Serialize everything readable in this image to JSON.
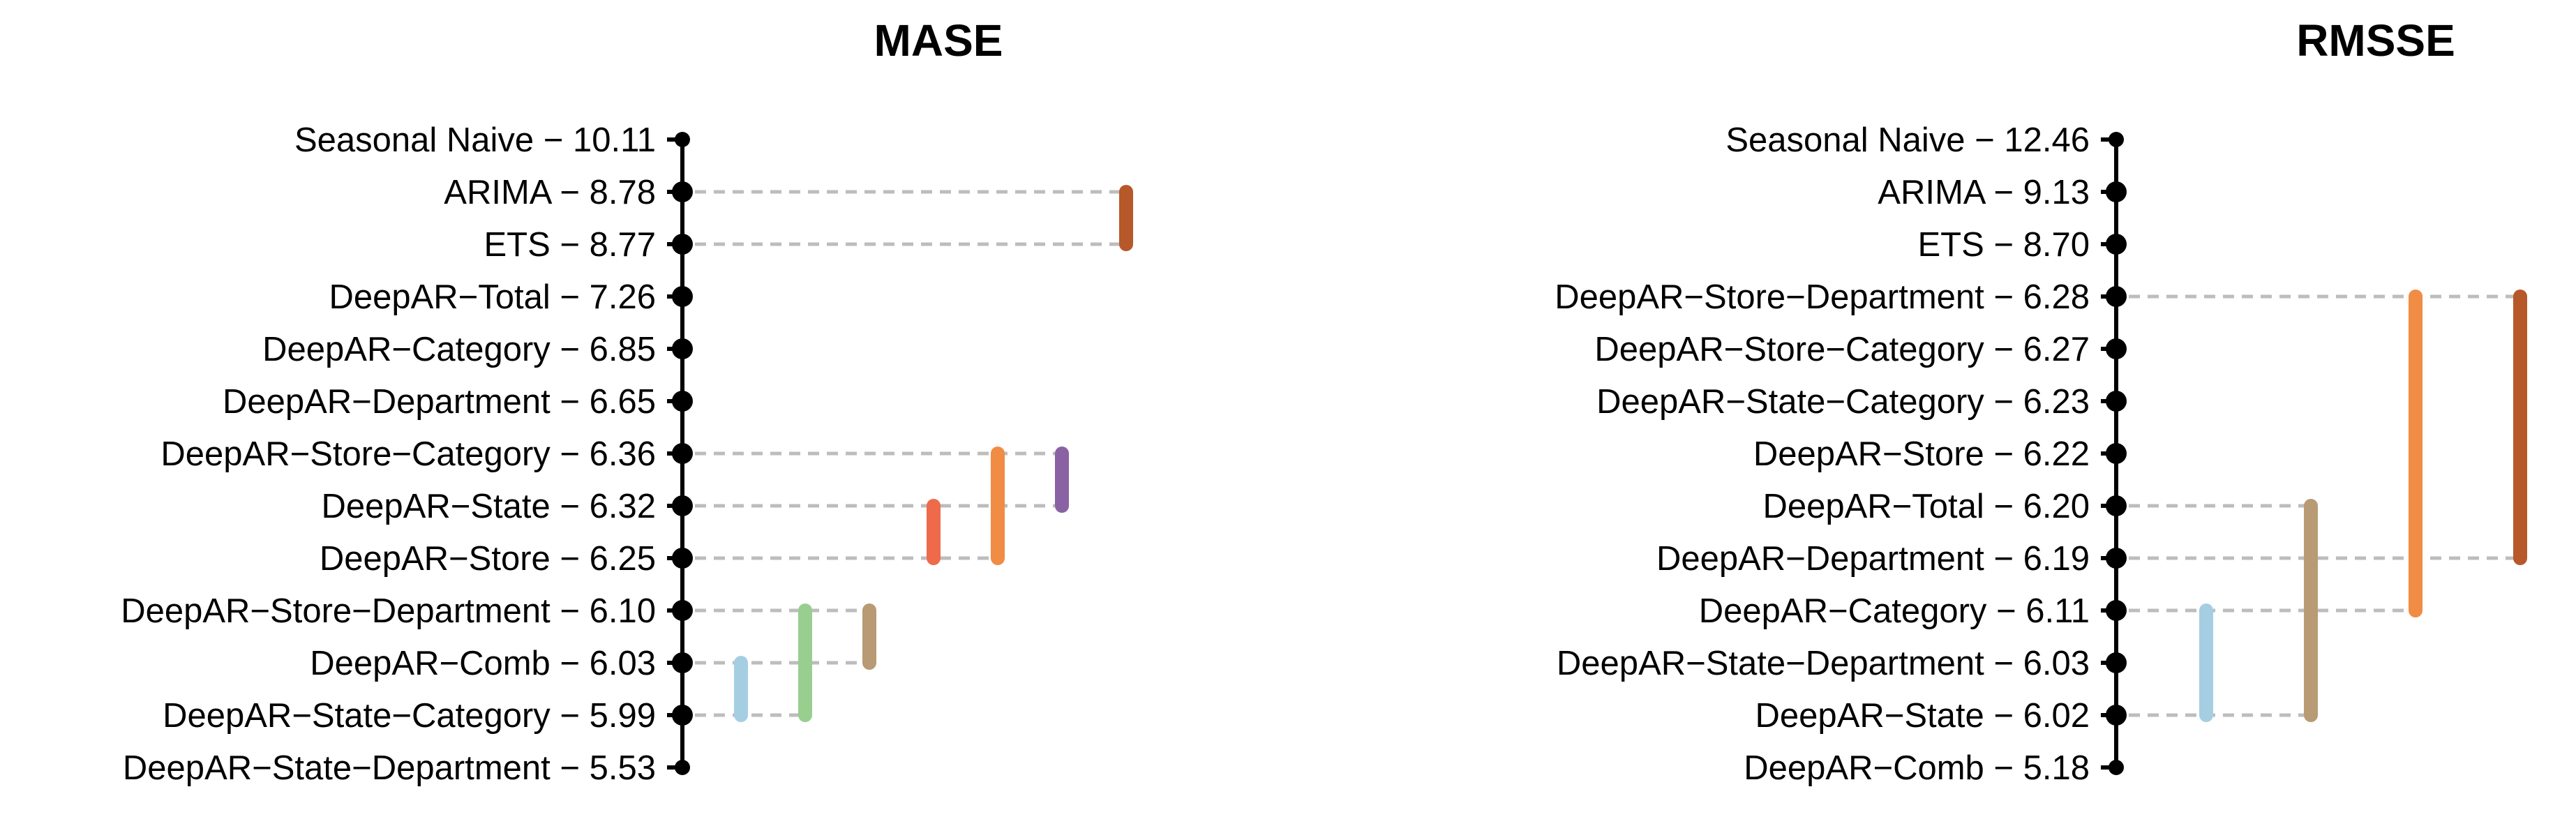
{
  "chart_data": [
    {
      "type": "mcb",
      "title": "MASE",
      "models": [
        {
          "name": "Seasonal Naive",
          "rank": "10.11"
        },
        {
          "name": "ARIMA",
          "rank": "8.78"
        },
        {
          "name": "ETS",
          "rank": "8.77"
        },
        {
          "name": "DeepAR−Total",
          "rank": "7.26"
        },
        {
          "name": "DeepAR−Category",
          "rank": "6.85"
        },
        {
          "name": "DeepAR−Department",
          "rank": "6.65"
        },
        {
          "name": "DeepAR−Store−Category",
          "rank": "6.36"
        },
        {
          "name": "DeepAR−State",
          "rank": "6.32"
        },
        {
          "name": "DeepAR−Store",
          "rank": "6.25"
        },
        {
          "name": "DeepAR−Store−Department",
          "rank": "6.10"
        },
        {
          "name": "DeepAR−Comb",
          "rank": "6.03"
        },
        {
          "name": "DeepAR−State−Category",
          "rank": "5.99"
        },
        {
          "name": "DeepAR−State−Department",
          "rank": "5.53"
        }
      ],
      "groups": [
        {
          "from": 11,
          "to": 10,
          "color": "#a6cee3"
        },
        {
          "from": 11,
          "to": 9,
          "color": "#98cf8f"
        },
        {
          "from": 10,
          "to": 9,
          "color": "#b89a74"
        },
        {
          "from": 8,
          "to": 7,
          "color": "#ee6a4b"
        },
        {
          "from": 8,
          "to": 6,
          "color": "#f08c44"
        },
        {
          "from": 7,
          "to": 6,
          "color": "#8a62a3"
        },
        {
          "from": 2,
          "to": 1,
          "color": "#b6582a"
        }
      ]
    },
    {
      "type": "mcb",
      "title": "RMSSE",
      "models": [
        {
          "name": "Seasonal Naive",
          "rank": "12.46"
        },
        {
          "name": "ARIMA",
          "rank": "9.13"
        },
        {
          "name": "ETS",
          "rank": "8.70"
        },
        {
          "name": "DeepAR−Store−Department",
          "rank": "6.28"
        },
        {
          "name": "DeepAR−Store−Category",
          "rank": "6.27"
        },
        {
          "name": "DeepAR−State−Category",
          "rank": "6.23"
        },
        {
          "name": "DeepAR−Store",
          "rank": "6.22"
        },
        {
          "name": "DeepAR−Total",
          "rank": "6.20"
        },
        {
          "name": "DeepAR−Department",
          "rank": "6.19"
        },
        {
          "name": "DeepAR−Category",
          "rank": "6.11"
        },
        {
          "name": "DeepAR−State−Department",
          "rank": "6.03"
        },
        {
          "name": "DeepAR−State",
          "rank": "6.02"
        },
        {
          "name": "DeepAR−Comb",
          "rank": "5.18"
        }
      ],
      "groups": [
        {
          "from": 11,
          "to": 9,
          "color": "#a6cee3"
        },
        {
          "from": 11,
          "to": 7,
          "color": "#b89a74"
        },
        {
          "from": 9,
          "to": 3,
          "color": "#f08c44"
        },
        {
          "from": 8,
          "to": 3,
          "color": "#b6582a"
        }
      ]
    }
  ]
}
